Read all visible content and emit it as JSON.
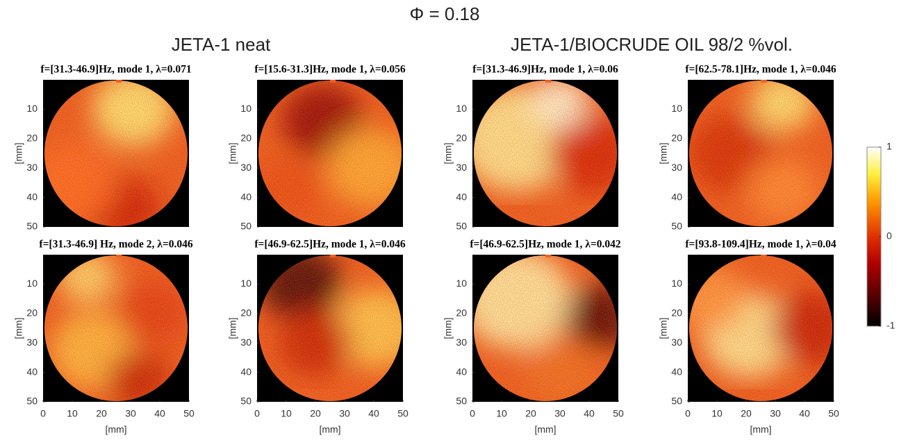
{
  "title": "Φ = 0.18",
  "groups": [
    "JETA-1 neat",
    "JETA-1/BIOCRUDE OIL 98/2 %vol."
  ],
  "panels": [
    {
      "title": "f=[31.3-46.9]Hz, mode 1, λ=0.071"
    },
    {
      "title": "f=[15.6-31.3]Hz, mode 1, λ=0.056"
    },
    {
      "title": "f=[31.3-46.9]Hz, mode 1, λ=0.06"
    },
    {
      "title": "f=[62.5-78.1]Hz, mode 1, λ=0.046"
    },
    {
      "title": "f=[31.3-46.9] Hz, mode 2, λ=0.046"
    },
    {
      "title": "f=[46.9-62.5]Hz, mode 1, λ=0.046"
    },
    {
      "title": "f=[46.9-62.5]Hz, mode 1, λ=0.042"
    },
    {
      "title": "f=[93.8-109.4]Hz, mode 1, λ=0.04"
    }
  ],
  "axes": {
    "xlim": [
      0,
      50
    ],
    "ylim": [
      0,
      50
    ],
    "xticks": [
      0,
      10,
      20,
      30,
      40,
      50
    ],
    "yticks": [
      10,
      20,
      30,
      40,
      50
    ],
    "xlabel": "[mm]",
    "ylabel": "[mm]"
  },
  "colorbar": {
    "lim": [
      -1,
      1
    ],
    "ticks": [
      1,
      0,
      -1
    ]
  }
}
